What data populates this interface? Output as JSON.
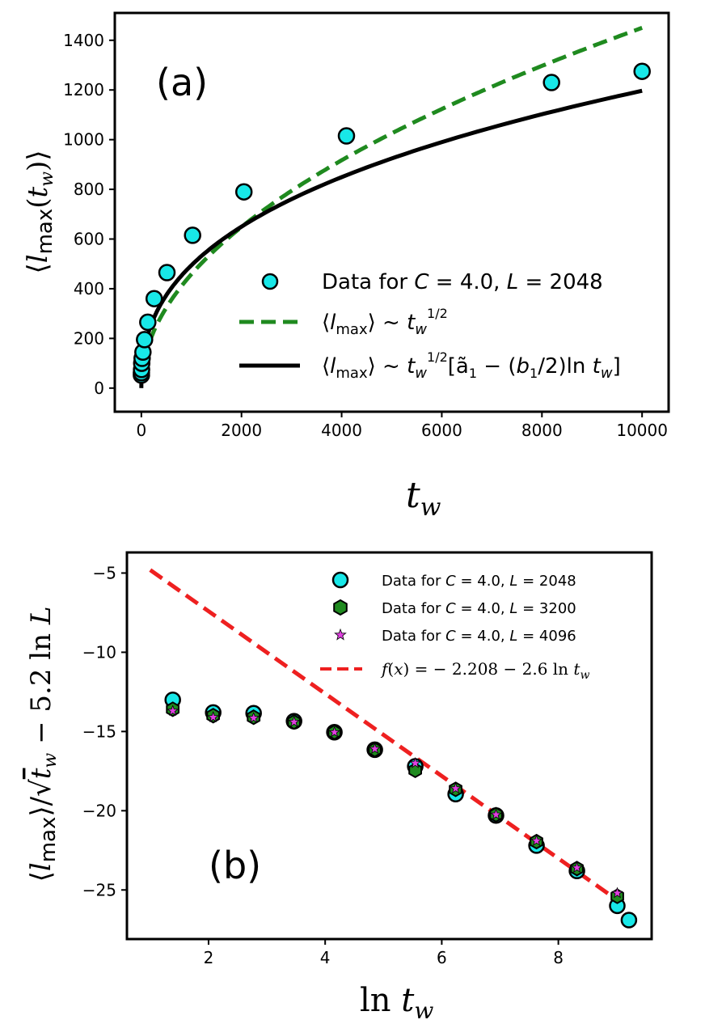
{
  "chart_data": [
    {
      "type": "scatter",
      "panel_label": "(a)",
      "xlabel": "t_w",
      "ylabel": "⟨l_max(t_w)⟩",
      "xlim": [
        -530,
        10530
      ],
      "ylim": [
        -95,
        1510
      ],
      "xticks": [
        0,
        2000,
        4000,
        6000,
        8000,
        10000
      ],
      "yticks": [
        0,
        200,
        400,
        600,
        800,
        1000,
        1200,
        1400
      ],
      "legend_position": "lower-right",
      "series": [
        {
          "name": "Data for C = 4.0, L = 2048",
          "kind": "points",
          "color": "#18e8e8",
          "x": [
            1,
            2,
            4,
            8,
            16,
            32,
            64,
            128,
            256,
            512,
            1024,
            2048,
            4096,
            8192,
            10000
          ],
          "y": [
            52,
            62,
            75,
            100,
            120,
            145,
            195,
            265,
            360,
            465,
            615,
            790,
            1015,
            1230,
            1275
          ]
        },
        {
          "name": "⟨l_max⟩ ~ t_w^{1/2}",
          "kind": "dashed-curve",
          "color": "#1f8a1f",
          "formula": "14.5 * sqrt(t_w)",
          "x_range": [
            50,
            10000
          ]
        },
        {
          "name": "⟨l_max⟩ ~ t_w^{1/2}[ã_1 − (b_1/2)ln t_w]",
          "kind": "solid-curve",
          "color": "#000000",
          "formula": "sqrt(t_w) * (26.63 - 1.592 * ln t_w)",
          "x_range": [
            1,
            10000
          ]
        }
      ]
    },
    {
      "type": "scatter",
      "panel_label": "(b)",
      "xlabel": "ln t_w",
      "ylabel": "⟨l_max⟩/√t_w − 5.2 ln L",
      "xlim": [
        0.6,
        9.6
      ],
      "ylim": [
        -28.1,
        -3.7
      ],
      "xticks": [
        2,
        4,
        6,
        8
      ],
      "yticks": [
        -5,
        -10,
        -15,
        -20,
        -25
      ],
      "legend_position": "top-right",
      "series": [
        {
          "name": "Data for C = 4.0, L = 2048",
          "kind": "points",
          "marker": "circle",
          "color": "#18e8e8",
          "x": [
            1.386,
            2.079,
            2.773,
            3.466,
            4.159,
            4.852,
            5.545,
            6.238,
            6.931,
            7.625,
            8.318,
            9.011,
            9.21
          ],
          "y": [
            -13.0,
            -13.8,
            -13.85,
            -14.35,
            -15.05,
            -16.15,
            -17.2,
            -18.95,
            -20.3,
            -22.2,
            -23.8,
            -26.0,
            -26.9
          ]
        },
        {
          "name": "Data for C = 4.0, L = 3200",
          "kind": "points",
          "marker": "hexagon",
          "color": "#1f8a1f",
          "x": [
            1.386,
            2.079,
            2.773,
            3.466,
            4.159,
            4.852,
            5.545,
            6.238,
            6.931,
            7.625,
            8.318,
            9.011
          ],
          "y": [
            -13.6,
            -14.0,
            -14.1,
            -14.4,
            -15.05,
            -16.15,
            -17.45,
            -18.65,
            -20.25,
            -21.95,
            -23.65,
            -25.4
          ]
        },
        {
          "name": "Data for C = 4.0, L = 4096",
          "kind": "points",
          "marker": "star",
          "color": "#e040e0",
          "x": [
            1.386,
            2.079,
            2.773,
            3.466,
            4.159,
            4.852,
            5.545,
            6.238,
            6.931,
            7.625,
            8.318,
            9.011
          ],
          "y": [
            -13.7,
            -14.1,
            -14.15,
            -14.4,
            -15.05,
            -16.1,
            -17.0,
            -18.6,
            -20.25,
            -21.9,
            -23.6,
            -25.2
          ]
        },
        {
          "name": "f(x) = − 2.208 − 2.6 ln t_w",
          "kind": "dashed-line",
          "color": "#ee2020",
          "intercept": -2.208,
          "slope": -2.6,
          "x_range": [
            1.0,
            9.0
          ]
        }
      ]
    }
  ]
}
